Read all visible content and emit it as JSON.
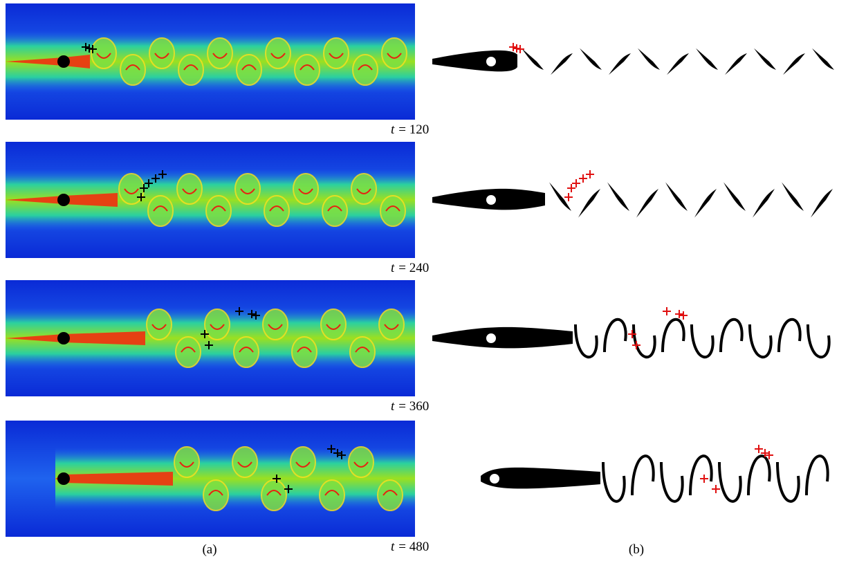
{
  "rows": [
    {
      "var": "t",
      "rest": "= 120"
    },
    {
      "var": "t",
      "rest": "= 240"
    },
    {
      "var": "t",
      "rest": "= 360"
    },
    {
      "var": "t",
      "rest": "= 480"
    }
  ],
  "captions": {
    "left": "(a)",
    "right": "(b)"
  }
}
